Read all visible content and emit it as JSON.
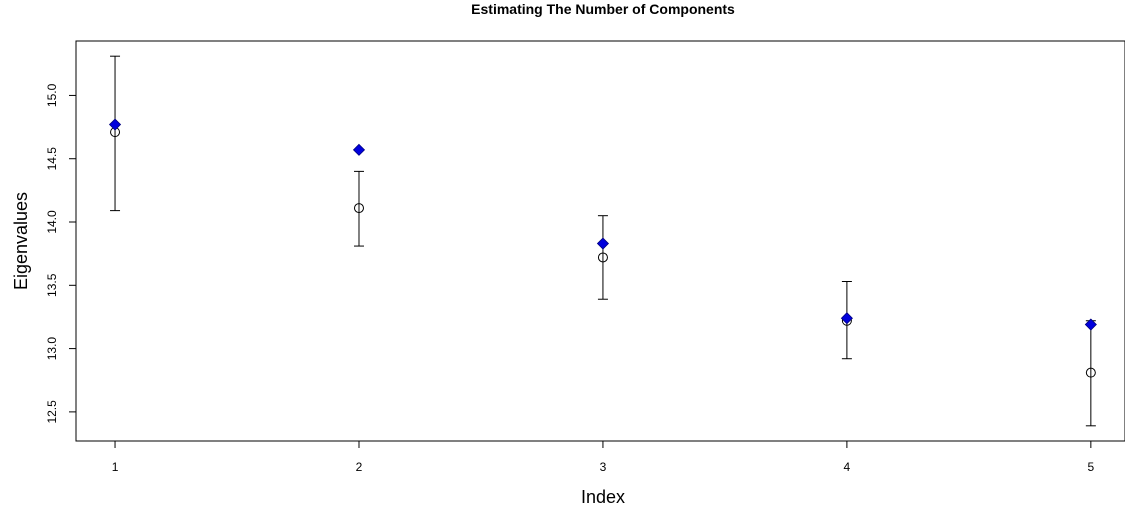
{
  "chart_data": {
    "type": "scatter",
    "title": "Estimating The Number of Components",
    "xlabel": "Index",
    "ylabel": "Eigenvalues",
    "x_ticks": [
      "1",
      "2",
      "3",
      "4",
      "5"
    ],
    "y_ticks": [
      "12.5",
      "13.0",
      "13.5",
      "14.0",
      "14.5",
      "15.0"
    ],
    "xlim": [
      0.84,
      5.14
    ],
    "ylim": [
      12.27,
      15.43
    ],
    "grid": false,
    "legend": "none",
    "colors": {
      "observed": "#0000dd",
      "mean": "#000000",
      "error_bar": "#000000"
    },
    "series": [
      {
        "marker": "filled-diamond",
        "points": [
          {
            "x": 1,
            "y": 14.77
          },
          {
            "x": 2,
            "y": 14.57
          },
          {
            "x": 3,
            "y": 13.83
          },
          {
            "x": 4,
            "y": 13.24
          },
          {
            "x": 5,
            "y": 13.19
          }
        ]
      },
      {
        "marker": "open-circle",
        "points": [
          {
            "x": 1,
            "y": 14.71,
            "low": 14.09,
            "high": 15.31
          },
          {
            "x": 2,
            "y": 14.11,
            "low": 13.81,
            "high": 14.4
          },
          {
            "x": 3,
            "y": 13.72,
            "low": 13.39,
            "high": 14.05
          },
          {
            "x": 4,
            "y": 13.22,
            "low": 12.92,
            "high": 13.53
          },
          {
            "x": 5,
            "y": 12.81,
            "low": 12.39,
            "high": 13.22
          }
        ]
      }
    ]
  }
}
